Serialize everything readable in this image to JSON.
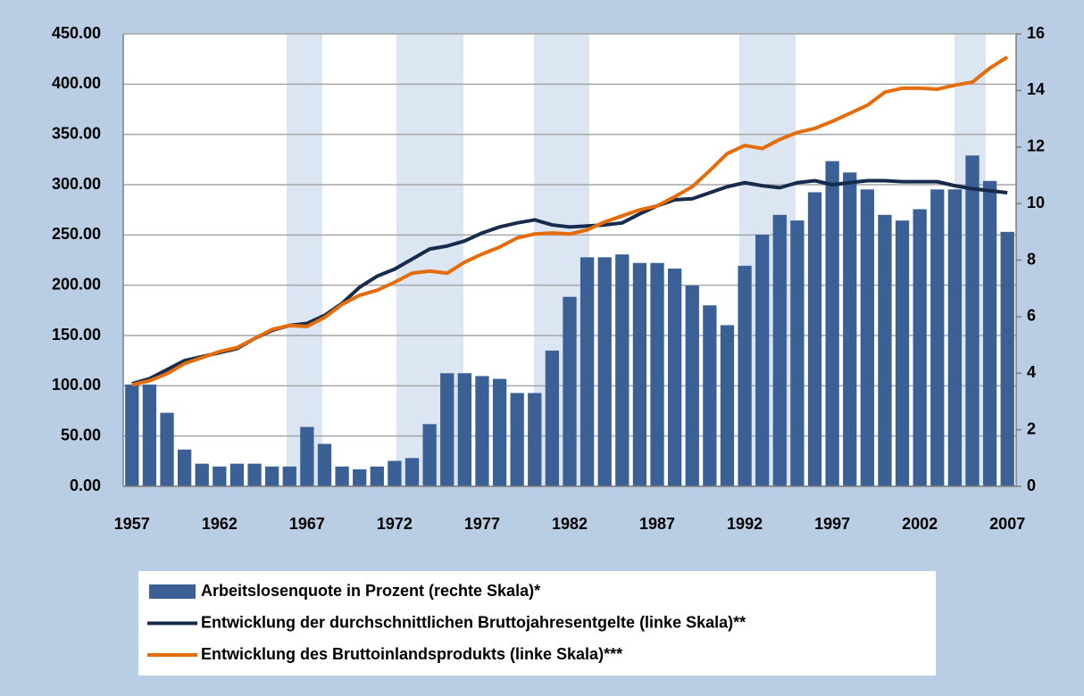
{
  "chart_data": {
    "type": "bar-line",
    "categories": [
      "1957",
      null,
      null,
      null,
      null,
      "1962",
      null,
      null,
      null,
      null,
      "1967",
      null,
      null,
      null,
      null,
      "1972",
      null,
      null,
      null,
      null,
      "1977",
      null,
      null,
      null,
      null,
      "1982",
      null,
      null,
      null,
      null,
      "1987",
      null,
      null,
      null,
      null,
      "1992",
      null,
      null,
      null,
      null,
      "1997",
      null,
      null,
      null,
      null,
      "2002",
      null,
      null,
      null,
      null,
      "2007"
    ],
    "ylim": [
      0,
      450
    ],
    "yticks": [
      {
        "value": 0,
        "label": "0.00"
      },
      {
        "value": 50,
        "label": "50.00"
      },
      {
        "value": 100,
        "label": "100.00"
      },
      {
        "value": 150,
        "label": "150.00"
      },
      {
        "value": 200,
        "label": "200.00"
      },
      {
        "value": 250,
        "label": "250.00"
      },
      {
        "value": 300,
        "label": "300.00"
      },
      {
        "value": 350,
        "label": "350.00"
      },
      {
        "value": 400,
        "label": "400.00"
      },
      {
        "value": 450,
        "label": "450.00"
      }
    ],
    "y2lim": [
      0,
      16
    ],
    "y2ticks": [
      0,
      2,
      4,
      6,
      8,
      10,
      12,
      14,
      16
    ],
    "grid": true,
    "series": [
      {
        "name": "Arbeitslosenquote in Prozent (rechte Skala)*",
        "kind": "bar",
        "axis": "y2",
        "color": "#3b6096",
        "values": [
          3.6,
          3.6,
          2.6,
          1.3,
          0.8,
          0.7,
          0.8,
          0.8,
          0.7,
          0.7,
          2.1,
          1.5,
          0.7,
          0.6,
          0.7,
          0.9,
          1.0,
          2.2,
          4.0,
          4.0,
          3.9,
          3.8,
          3.3,
          3.3,
          4.8,
          6.7,
          8.1,
          8.1,
          8.2,
          7.9,
          7.9,
          7.7,
          7.1,
          6.4,
          5.7,
          7.8,
          8.9,
          9.6,
          9.4,
          10.4,
          11.5,
          11.1,
          10.5,
          9.6,
          9.4,
          9.8,
          10.5,
          10.5,
          11.7,
          10.8,
          9.0
        ]
      },
      {
        "name": "Entwicklung der durchschnittlichen Bruttojahresentgelte (linke Skala)**",
        "kind": "line",
        "color": "#172b4d",
        "values": [
          102,
          107,
          116,
          125,
          129,
          133,
          137,
          147,
          155,
          160,
          162,
          170,
          182,
          198,
          209,
          216,
          226,
          236,
          239,
          244,
          252,
          258,
          262,
          265,
          260,
          258,
          259,
          260,
          262,
          271,
          279,
          285,
          286,
          292,
          298,
          302,
          299,
          297,
          302,
          304,
          300,
          302,
          304,
          304,
          303,
          303,
          303,
          299,
          296,
          294,
          292
        ]
      },
      {
        "name": "Entwicklung des Bruttoinlandsprodukts (linke Skala)***",
        "kind": "line",
        "color": "#e46c0a",
        "values": [
          101,
          105,
          112,
          122,
          128,
          134,
          138,
          147,
          156,
          160,
          159,
          168,
          181,
          190,
          195,
          203,
          212,
          214,
          212,
          223,
          231,
          238,
          247,
          251,
          252,
          251,
          255,
          263,
          269,
          275,
          279,
          288,
          298,
          314,
          331,
          339,
          336,
          345,
          352,
          356,
          363,
          371,
          379,
          392,
          396,
          396,
          395,
          399,
          402,
          416,
          427
        ]
      }
    ]
  }
}
